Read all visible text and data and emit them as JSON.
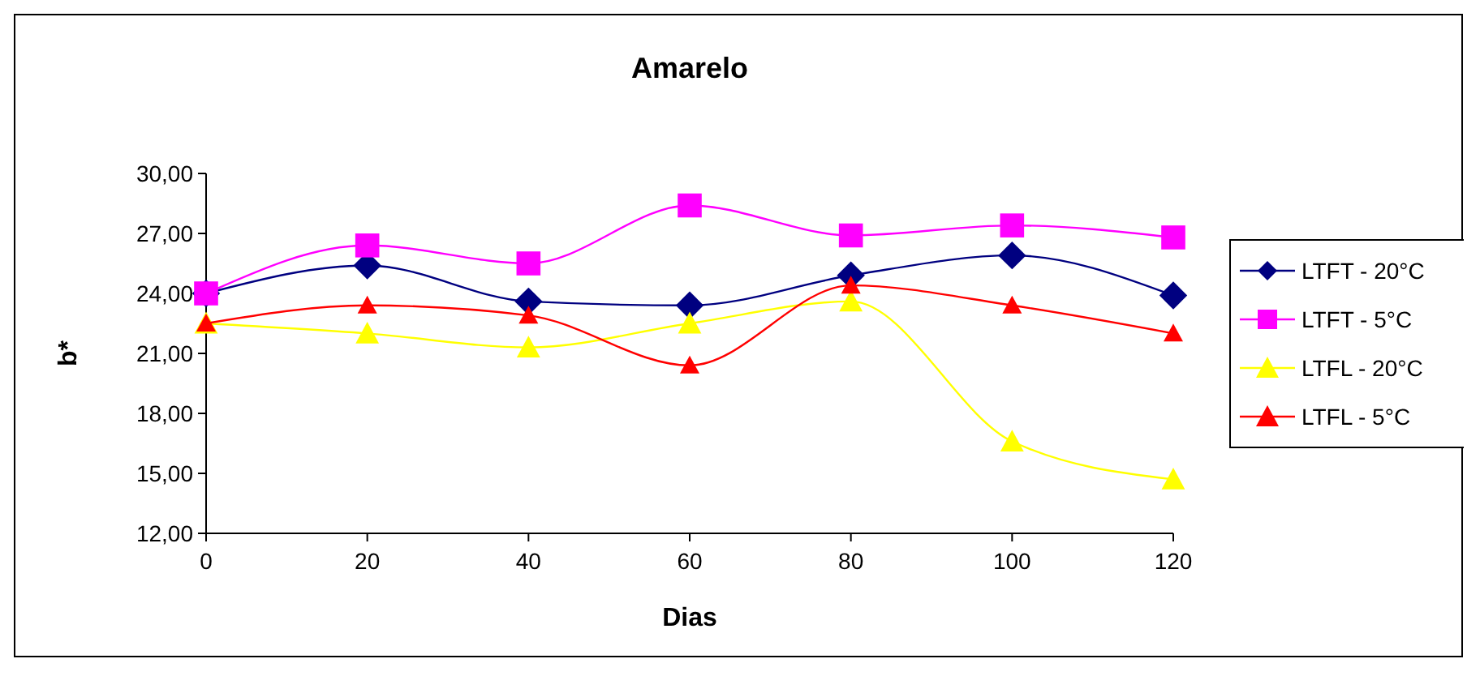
{
  "chart_data": {
    "type": "line",
    "title": "Amarelo",
    "xlabel": "Dias",
    "ylabel": "b*",
    "x": [
      0,
      20,
      40,
      60,
      80,
      100,
      120
    ],
    "series": [
      {
        "name": "LTFT - 20°C",
        "color": "#000080",
        "marker": "diamond",
        "values": [
          24.0,
          25.4,
          23.6,
          23.4,
          24.9,
          25.9,
          23.9
        ]
      },
      {
        "name": "LTFT - 5°C",
        "color": "#ff00ff",
        "marker": "square",
        "values": [
          24.0,
          26.4,
          25.5,
          28.4,
          26.9,
          27.4,
          26.8
        ]
      },
      {
        "name": "LTFL - 20°C",
        "color": "#ffff00",
        "marker": "triangle",
        "values": [
          22.5,
          22.0,
          21.3,
          22.5,
          23.6,
          16.6,
          14.7
        ]
      },
      {
        "name": "LTFL - 5°C",
        "color": "#ff0000",
        "marker": "triangle",
        "values": [
          22.5,
          23.4,
          22.9,
          20.4,
          24.4,
          23.4,
          22.0
        ]
      }
    ],
    "xlim": [
      0,
      120
    ],
    "xticks": [
      0,
      20,
      40,
      60,
      80,
      100,
      120
    ],
    "ylim": [
      12,
      30
    ],
    "yticks": [
      {
        "value": 12,
        "label": "12,00"
      },
      {
        "value": 15,
        "label": "15,00"
      },
      {
        "value": 18,
        "label": "18,00"
      },
      {
        "value": 21,
        "label": "21,00"
      },
      {
        "value": 24,
        "label": "24,00"
      },
      {
        "value": 27,
        "label": "27,00"
      },
      {
        "value": 30,
        "label": "30,00"
      }
    ],
    "legend": "right",
    "grid": false
  }
}
